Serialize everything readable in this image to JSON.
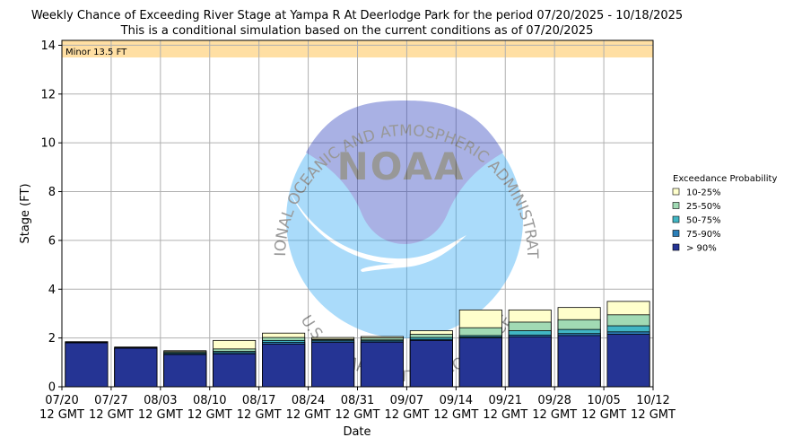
{
  "chart_data": {
    "type": "bar",
    "stacked": true,
    "title": "Weekly Chance of Exceeding River Stage at Yampa R At Deerlodge Park for the period 07/20/2025 - 10/18/2025",
    "subtitle": "This is a conditional simulation based on the current conditions as of 07/20/2025",
    "xlabel": "Date",
    "ylabel": "Stage (FT)",
    "ylim": [
      0,
      14.2
    ],
    "yticks": [
      0,
      2,
      4,
      6,
      8,
      10,
      12,
      14
    ],
    "xticks": [
      {
        "date": "07/20",
        "time": "12 GMT"
      },
      {
        "date": "07/27",
        "time": "12 GMT"
      },
      {
        "date": "08/03",
        "time": "12 GMT"
      },
      {
        "date": "08/10",
        "time": "12 GMT"
      },
      {
        "date": "08/17",
        "time": "12 GMT"
      },
      {
        "date": "08/24",
        "time": "12 GMT"
      },
      {
        "date": "08/31",
        "time": "12 GMT"
      },
      {
        "date": "09/07",
        "time": "12 GMT"
      },
      {
        "date": "09/14",
        "time": "12 GMT"
      },
      {
        "date": "09/21",
        "time": "12 GMT"
      },
      {
        "date": "09/28",
        "time": "12 GMT"
      },
      {
        "date": "10/05",
        "time": "12 GMT"
      },
      {
        "date": "10/12",
        "time": "12 GMT"
      }
    ],
    "grid": true,
    "flood_band": {
      "label": "Minor 13.5 FT",
      "from": 13.5,
      "to": 14.2,
      "color": "#ffdfa3"
    },
    "legend": {
      "title": "Exceedance Probability",
      "placement": "right"
    },
    "series": [
      {
        "name": "> 90%",
        "color": "#253494",
        "values": [
          1.8,
          1.58,
          1.32,
          1.35,
          1.75,
          1.82,
          1.83,
          1.9,
          2.0,
          2.05,
          2.1,
          2.15
        ]
      },
      {
        "name": "75-90%",
        "color": "#2c7fb8",
        "values": [
          1.82,
          1.6,
          1.36,
          1.4,
          1.82,
          1.88,
          1.88,
          1.94,
          2.04,
          2.12,
          2.18,
          2.25
        ]
      },
      {
        "name": "50-75%",
        "color": "#41b6c4",
        "values": [
          1.83,
          1.61,
          1.4,
          1.45,
          1.9,
          1.92,
          1.92,
          2.02,
          2.1,
          2.3,
          2.35,
          2.5
        ]
      },
      {
        "name": "25-50%",
        "color": "#a1dab4",
        "values": [
          1.84,
          1.62,
          1.44,
          1.55,
          2.02,
          1.95,
          2.0,
          2.15,
          2.42,
          2.65,
          2.75,
          2.95
        ]
      },
      {
        "name": "10-25%",
        "color": "#ffffcc",
        "values": [
          1.85,
          1.63,
          1.48,
          1.9,
          2.2,
          2.02,
          2.06,
          2.3,
          3.15,
          3.15,
          3.25,
          3.5
        ]
      }
    ]
  },
  "watermark": {
    "top_text": "NATIONAL OCEANIC AND ATMOSPHERIC ADMINISTRATION",
    "bottom_text": "U.S. DEPARTMENT OF COMMERCE",
    "center_text": "NOAA"
  }
}
